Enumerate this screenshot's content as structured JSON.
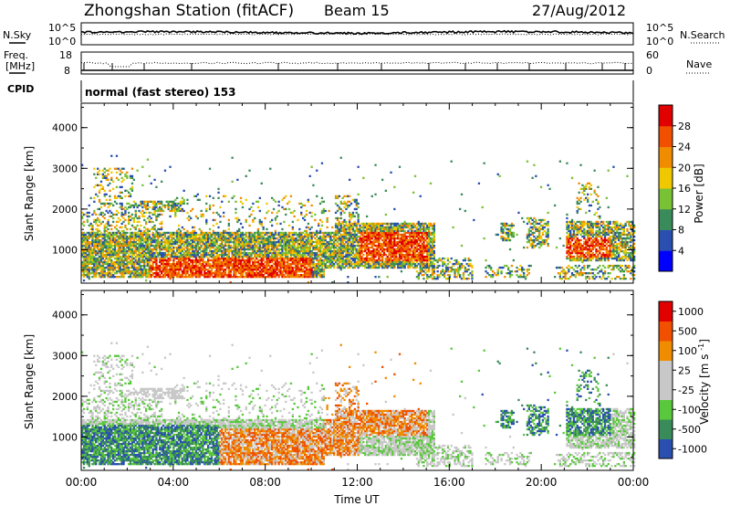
{
  "header": {
    "title": "Zhongshan Station (fitACF)",
    "beam": "Beam 15",
    "date": "27/Aug/2012"
  },
  "nsky_panel": {
    "left_label": "N.Sky",
    "right_label": "N.Search",
    "left_ticks": [
      "10^5",
      "10^0"
    ],
    "right_ticks": [
      "10^5",
      "10^0"
    ]
  },
  "freq_panel": {
    "left_label_1": "Freq.",
    "left_label_2": "[MHz]",
    "right_label": "Nave",
    "left_ticks": [
      "18",
      "8"
    ],
    "right_ticks": [
      "60",
      "0"
    ]
  },
  "cpid": {
    "label": "CPID",
    "text": "normal (fast stereo) 153"
  },
  "colors": {
    "power": [
      "#0000ff",
      "#2a4fb0",
      "#3a8b5a",
      "#79c236",
      "#f0c800",
      "#f08c00",
      "#f05000",
      "#e00000"
    ],
    "velocity": [
      "#e00000",
      "#f05000",
      "#f08c00",
      "#c8c8c8",
      "#c8c8c8",
      "#5ac83c",
      "#3a8b5a",
      "#2a4fb0"
    ]
  },
  "chart_data": [
    {
      "type": "heatmap",
      "name": "power",
      "ylabel": "Slant Range [km]",
      "xlabel": "",
      "ylim": [
        180,
        4600
      ],
      "yticks": [
        "1000",
        "2000",
        "3000",
        "4000"
      ],
      "ytick_values": [
        1000,
        2000,
        3000,
        4000
      ],
      "colorbar_label": "Power [dB]",
      "colorbar_ticks": [
        "4",
        "8",
        "12",
        "16",
        "20",
        "24",
        "28"
      ],
      "colorbar_range": [
        0,
        32
      ]
    },
    {
      "type": "heatmap",
      "name": "velocity",
      "ylabel": "Slant Range [km]",
      "xlabel": "Time UT",
      "ylim": [
        180,
        4600
      ],
      "yticks": [
        "1000",
        "2000",
        "3000",
        "4000"
      ],
      "ytick_values": [
        1000,
        2000,
        3000,
        4000
      ],
      "xticks": [
        "00:00",
        "04:00",
        "08:00",
        "12:00",
        "16:00",
        "20:00",
        "00:00"
      ],
      "xtick_values": [
        0,
        4,
        8,
        12,
        16,
        20,
        24
      ],
      "colorbar_label": "Velocity [m s^-1]",
      "colorbar_ticks": [
        "1000",
        "500",
        "100",
        "25",
        "-25",
        "-100",
        "-500",
        "-1000"
      ]
    }
  ]
}
